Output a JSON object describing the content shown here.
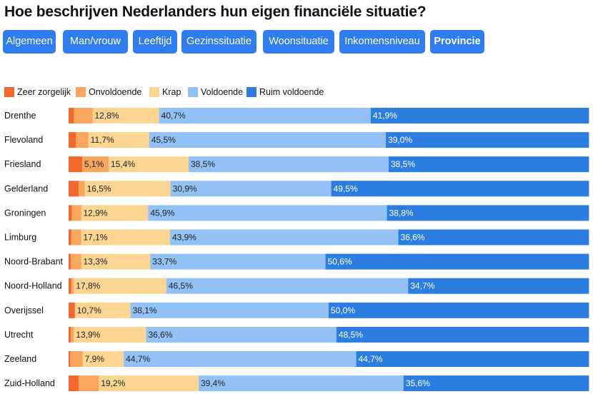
{
  "header": {
    "title": "Hoe beschrijven Nederlanders hun eigen financiële situatie?"
  },
  "tabs": [
    {
      "label": "Algemeen",
      "active": false
    },
    {
      "label": "Man/vrouw",
      "active": false
    },
    {
      "label": "Leeftijd",
      "active": false
    },
    {
      "label": "Gezinssituatie",
      "active": false
    },
    {
      "label": "Woonsituatie",
      "active": false
    },
    {
      "label": "Inkomensniveau",
      "active": false
    },
    {
      "label": "Provincie",
      "active": true
    }
  ],
  "colors": {
    "tab_bg": "#2e7ef2",
    "series": [
      "#f4672a",
      "#f8a55e",
      "#fcd592",
      "#92c2f5",
      "#2c7de0"
    ]
  },
  "chart_data": {
    "type": "bar",
    "orientation": "horizontal",
    "stacked": true,
    "title": "Hoe beschrijven Nederlanders hun eigen financiële situatie?",
    "xlim": [
      0,
      100
    ],
    "legend_position": "top-left",
    "categories": [
      "Drenthe",
      "Flevoland",
      "Friesland",
      "Gelderland",
      "Groningen",
      "Limburg",
      "Noord-Brabant",
      "Noord-Holland",
      "Overijssel",
      "Utrecht",
      "Zeeland",
      "Zuid-Holland"
    ],
    "series": [
      {
        "name": "Zeer zorgelijk",
        "values": [
          1.0,
          1.4,
          2.6,
          1.9,
          0.6,
          0.5,
          0.4,
          0.5,
          1.2,
          0.4,
          0.3,
          1.9
        ]
      },
      {
        "name": "Onvoldoende",
        "values": [
          3.6,
          2.4,
          5.1,
          1.2,
          1.8,
          1.9,
          2.0,
          0.5,
          0.0,
          0.6,
          2.4,
          3.9
        ]
      },
      {
        "name": "Krap",
        "values": [
          12.8,
          11.7,
          15.4,
          16.5,
          12.9,
          17.1,
          13.3,
          17.8,
          10.7,
          13.9,
          7.9,
          19.2
        ]
      },
      {
        "name": "Voldoende",
        "values": [
          40.7,
          45.5,
          38.5,
          30.9,
          45.9,
          43.9,
          33.7,
          46.5,
          38.1,
          36.6,
          44.7,
          39.4
        ]
      },
      {
        "name": "Ruim voldoende",
        "values": [
          41.9,
          39.0,
          38.5,
          49.5,
          38.8,
          36.6,
          50.6,
          34.7,
          50.0,
          48.5,
          44.7,
          35.6
        ]
      }
    ],
    "labels": [
      [
        "",
        "",
        "12,8%",
        "40,7%",
        "41,9%"
      ],
      [
        "",
        "",
        "11,7%",
        "45,5%",
        "39,0%"
      ],
      [
        "",
        "5,1%",
        "15,4%",
        "38,5%",
        "38,5%"
      ],
      [
        "",
        "",
        "16,5%",
        "30,9%",
        "49,5%"
      ],
      [
        "",
        "",
        "12,9%",
        "45,9%",
        "38,8%"
      ],
      [
        "",
        "",
        "17,1%",
        "43,9%",
        "36,6%"
      ],
      [
        "",
        "",
        "13,3%",
        "33,7%",
        "50,6%"
      ],
      [
        "",
        "",
        "17,8%",
        "46,5%",
        "34,7%"
      ],
      [
        "",
        "",
        "10,7%",
        "38,1%",
        "50,0%"
      ],
      [
        "",
        "",
        "13,9%",
        "36,6%",
        "48,5%"
      ],
      [
        "",
        "",
        "7,9%",
        "44,7%",
        "44,7%"
      ],
      [
        "",
        "",
        "19,2%",
        "39,4%",
        "35,6%"
      ]
    ]
  }
}
